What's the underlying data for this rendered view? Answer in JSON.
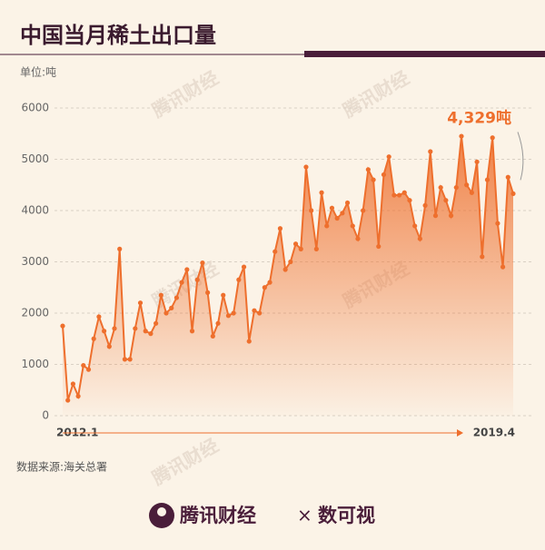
{
  "chart_data": {
    "type": "line",
    "title": "中国当月稀土出口量",
    "y_unit": "单位:吨",
    "source": "数据来源:海关总署",
    "watermark": "腾讯财经",
    "footer_brand": "腾讯财经",
    "footer_separator": "×",
    "footer_partner": "数可视",
    "categories": [
      "2012.1",
      null,
      null,
      null,
      null,
      null,
      null,
      null,
      null,
      null,
      null,
      null,
      null,
      null,
      null,
      null,
      null,
      null,
      null,
      null,
      null,
      null,
      null,
      null,
      null,
      null,
      null,
      null,
      null,
      null,
      null,
      null,
      null,
      null,
      null,
      null,
      null,
      null,
      null,
      null,
      null,
      null,
      null,
      null,
      null,
      null,
      null,
      null,
      null,
      null,
      null,
      null,
      null,
      null,
      null,
      null,
      null,
      null,
      null,
      null,
      null,
      null,
      null,
      null,
      null,
      null,
      null,
      null,
      null,
      null,
      null,
      null,
      null,
      null,
      null,
      null,
      null,
      null,
      null,
      null,
      null,
      null,
      null,
      null,
      null,
      null,
      null,
      "2019.4"
    ],
    "series": [
      {
        "name": "稀土出口量",
        "color": "#ee6f2d",
        "values": [
          1750,
          300,
          620,
          380,
          980,
          900,
          1500,
          1930,
          1650,
          1350,
          1700,
          3250,
          1100,
          1100,
          1700,
          2200,
          1650,
          1600,
          1800,
          2350,
          2000,
          2100,
          2300,
          2600,
          2850,
          1650,
          2650,
          2980,
          2400,
          1550,
          1800,
          2350,
          1950,
          2000,
          2650,
          2900,
          1450,
          2050,
          2000,
          2500,
          2600,
          3200,
          3650,
          2850,
          3000,
          3350,
          3250,
          4850,
          4000,
          3250,
          4350,
          3700,
          4050,
          3850,
          3950,
          4150,
          3700,
          3450,
          4000,
          4800,
          4600,
          3300,
          4700,
          5050,
          4300,
          4300,
          4350,
          4200,
          3700,
          3450,
          4100,
          5150,
          3900,
          4450,
          4200,
          3900,
          4450,
          5450,
          4500,
          4350,
          4950,
          3100,
          4600,
          5420,
          3750,
          2900,
          4650,
          4329
        ],
        "value_labels": [
          null,
          null,
          null,
          null,
          null,
          null,
          null,
          null,
          null,
          null,
          null,
          null,
          null,
          null,
          null,
          null,
          null,
          null,
          null,
          null,
          null,
          null,
          null,
          null,
          null,
          null,
          null,
          null,
          null,
          null,
          null,
          null,
          null,
          null,
          null,
          null,
          null,
          null,
          null,
          null,
          null,
          null,
          null,
          null,
          null,
          null,
          null,
          null,
          null,
          null,
          null,
          null,
          null,
          null,
          null,
          null,
          null,
          null,
          null,
          null,
          null,
          null,
          null,
          null,
          null,
          null,
          null,
          null,
          null,
          null,
          null,
          null,
          null,
          null,
          null,
          null,
          null,
          null,
          null,
          null,
          null,
          null,
          null,
          null,
          null,
          null,
          null,
          "4,329吨"
        ]
      }
    ],
    "ylim": [
      0,
      6000
    ],
    "yticks": [
      0,
      1000,
      2000,
      3000,
      4000,
      5000,
      6000
    ],
    "grid": true
  }
}
